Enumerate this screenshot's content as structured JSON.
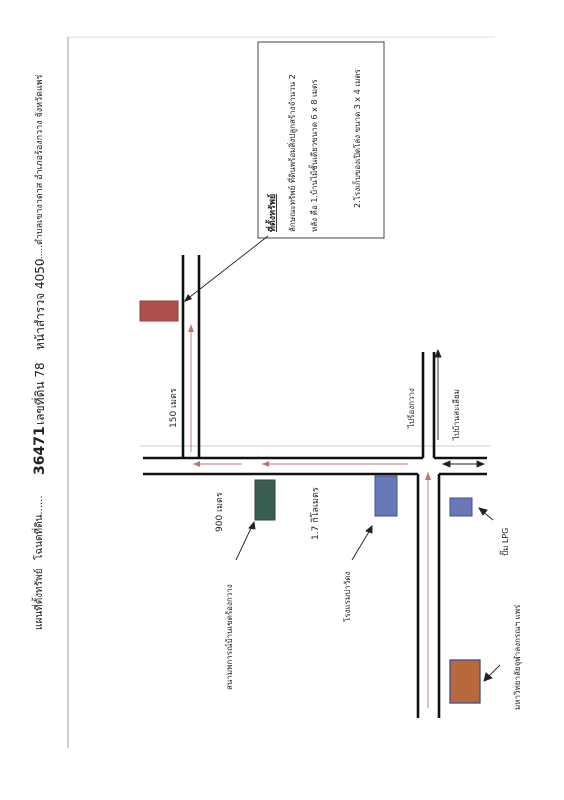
{
  "header": {
    "prefix": "แผนที่ตั้งทรัพย์",
    "deed_label": "โฉนดที่ดิน......",
    "deed_no": "36471",
    "land_no": "เลขที่ดิน 78",
    "survey_page": "หน้าสำรวจ 4050",
    "location": ".......ตำบลเขางาดาส  อำเภอร้องกวาง จังหวัดแพร่"
  },
  "legend": {
    "title": "ที่ตั้งทรัพย์",
    "line1": "ลักษณะทรัพย์ ที่ดินพร้อมสิ่งปลูกสร้างจำนวน 2",
    "line2": "หลัง  คือ 1.บ้านไม้ชั้นเดียวขนาด   6 x 8 เมตร",
    "line3": "2.โรงเก็บของเปิดโล่ง  ขนาด  3 x 4 เมตร"
  },
  "labels": {
    "dist_150": "150 เมตร",
    "dist_900": "900 เมตร",
    "dist_17": "1.7 กิโลเมตร",
    "school": "สนามพการณ์บ้านเขตร้องกวาง",
    "hospital": "โรงแรมบ่าวัดง",
    "university": "มหาวิทยาลัยจุฬาลงกรณฯ  แพร่",
    "lpg": "ปั๊ม LPG",
    "to_rongkwang": "ไปร้องกวาง",
    "to_songkhwae": "ไปบ้านสะเลียม"
  },
  "colors": {
    "property": "#b0504c",
    "school": "#3b5e52",
    "building_blue": "#6878b8",
    "university": "#b8693c",
    "arrow_red": "#c27474",
    "road": "#111111"
  }
}
